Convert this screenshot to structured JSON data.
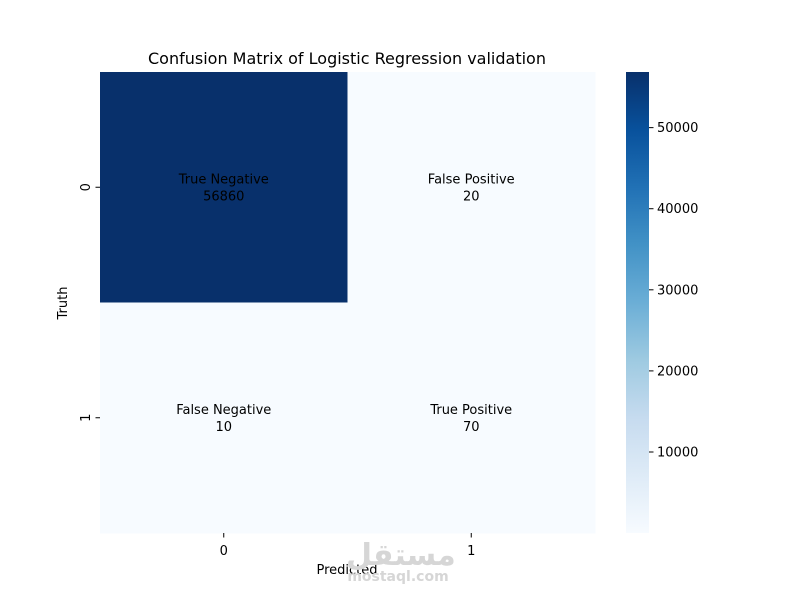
{
  "chart_data": {
    "type": "heatmap",
    "title": "Confusion Matrix of Logistic Regression validation",
    "xlabel": "Predicted",
    "ylabel": "Truth",
    "x_categories": [
      "0",
      "1"
    ],
    "y_categories": [
      "0",
      "1"
    ],
    "values": [
      [
        56860,
        20
      ],
      [
        10,
        70
      ]
    ],
    "cell_labels": [
      [
        "True Negative",
        "False Positive"
      ],
      [
        "False Negative",
        "True Positive"
      ]
    ],
    "colormap": "Blues",
    "colorbar": {
      "min": 10,
      "max": 56860,
      "ticks": [
        10000,
        20000,
        30000,
        40000,
        50000
      ],
      "tick_labels": [
        "10000",
        "20000",
        "30000",
        "40000",
        "50000"
      ]
    }
  },
  "watermark": {
    "glyph": "مستقل",
    "text": "mostaql.com"
  }
}
